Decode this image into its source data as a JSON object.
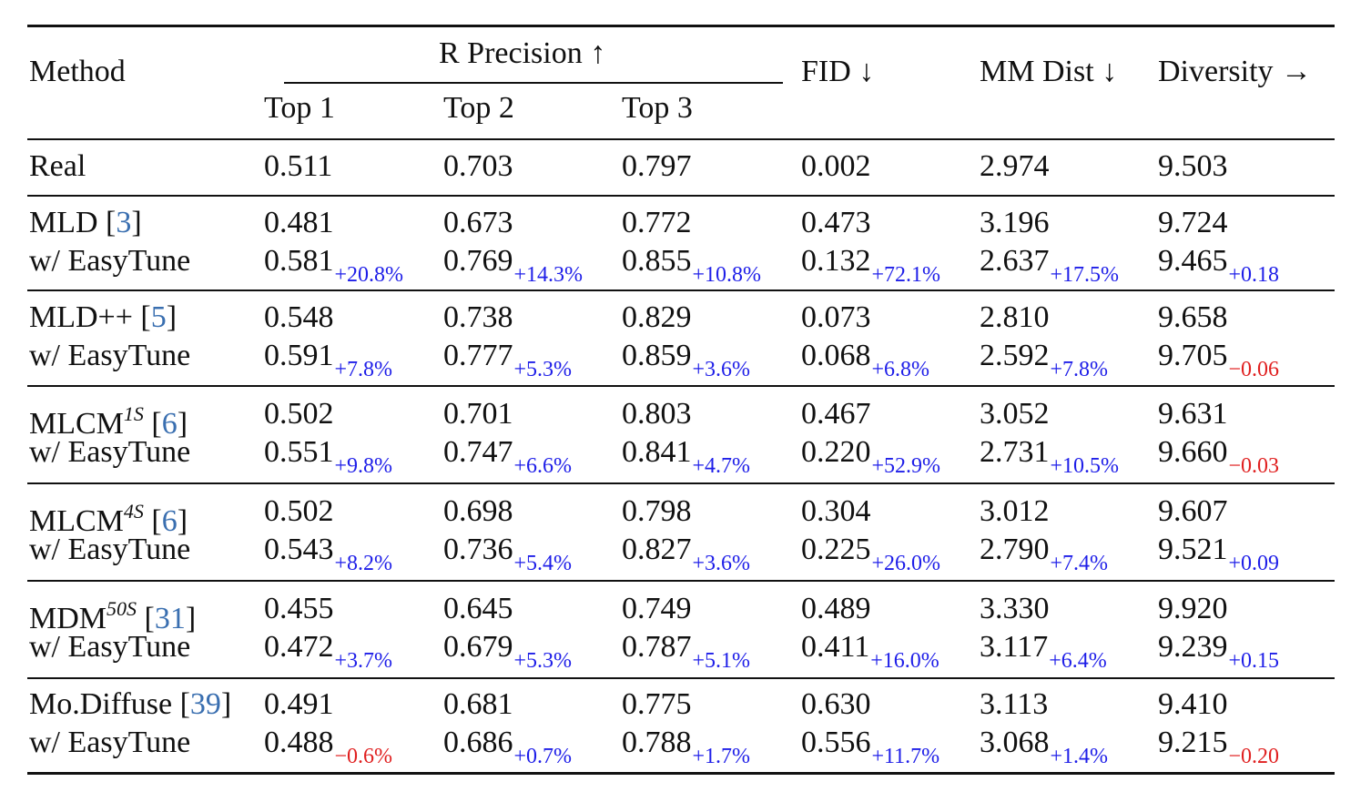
{
  "header": {
    "method": "Method",
    "r_precision": "R Precision ↑",
    "top1": "Top 1",
    "top2": "Top 2",
    "top3": "Top 3",
    "fid": "FID ↓",
    "mm_dist": "MM Dist ↓",
    "diversity": "Diversity →"
  },
  "rows": [
    {
      "method": "Real",
      "ref": "",
      "sup": "",
      "values": [
        "0.511",
        "0.703",
        "0.797",
        "0.002",
        "2.974",
        "9.503"
      ],
      "deltas": [
        "",
        "",
        "",
        "",
        "",
        ""
      ],
      "signs": [
        "",
        "",
        "",
        "",
        "",
        ""
      ]
    },
    {
      "method": "MLD [",
      "ref": "3",
      "sup": "",
      "values": [
        "0.481",
        "0.673",
        "0.772",
        "0.473",
        "3.196",
        "9.724"
      ],
      "deltas": [
        "",
        "",
        "",
        "",
        "",
        ""
      ],
      "signs": [
        "",
        "",
        "",
        "",
        "",
        ""
      ]
    },
    {
      "method": "w/ EasyTune",
      "ref": "",
      "sup": "",
      "values": [
        "0.581",
        "0.769",
        "0.855",
        "0.132",
        "2.637",
        "9.465"
      ],
      "deltas": [
        "+20.8%",
        "+14.3%",
        "+10.8%",
        "+72.1%",
        "+17.5%",
        "+0.18"
      ],
      "signs": [
        "pos",
        "pos",
        "pos",
        "pos",
        "pos",
        "pos"
      ]
    },
    {
      "method": "MLD++ [",
      "ref": "5",
      "sup": "",
      "values": [
        "0.548",
        "0.738",
        "0.829",
        "0.073",
        "2.810",
        "9.658"
      ],
      "deltas": [
        "",
        "",
        "",
        "",
        "",
        ""
      ],
      "signs": [
        "",
        "",
        "",
        "",
        "",
        ""
      ]
    },
    {
      "method": "w/ EasyTune",
      "ref": "",
      "sup": "",
      "values": [
        "0.591",
        "0.777",
        "0.859",
        "0.068",
        "2.592",
        "9.705"
      ],
      "deltas": [
        "+7.8%",
        "+5.3%",
        "+3.6%",
        "+6.8%",
        "+7.8%",
        "−0.06"
      ],
      "signs": [
        "pos",
        "pos",
        "pos",
        "pos",
        "pos",
        "neg"
      ]
    },
    {
      "method": "MLCM",
      "ref": "6",
      "sup": "1S",
      "values": [
        "0.502",
        "0.701",
        "0.803",
        "0.467",
        "3.052",
        "9.631"
      ],
      "deltas": [
        "",
        "",
        "",
        "",
        "",
        ""
      ],
      "signs": [
        "",
        "",
        "",
        "",
        "",
        ""
      ]
    },
    {
      "method": "w/ EasyTune",
      "ref": "",
      "sup": "",
      "values": [
        "0.551",
        "0.747",
        "0.841",
        "0.220",
        "2.731",
        "9.660"
      ],
      "deltas": [
        "+9.8%",
        "+6.6%",
        "+4.7%",
        "+52.9%",
        "+10.5%",
        "−0.03"
      ],
      "signs": [
        "pos",
        "pos",
        "pos",
        "pos",
        "pos",
        "neg"
      ]
    },
    {
      "method": "MLCM",
      "ref": "6",
      "sup": "4S",
      "values": [
        "0.502",
        "0.698",
        "0.798",
        "0.304",
        "3.012",
        "9.607"
      ],
      "deltas": [
        "",
        "",
        "",
        "",
        "",
        ""
      ],
      "signs": [
        "",
        "",
        "",
        "",
        "",
        ""
      ]
    },
    {
      "method": "w/ EasyTune",
      "ref": "",
      "sup": "",
      "values": [
        "0.543",
        "0.736",
        "0.827",
        "0.225",
        "2.790",
        "9.521"
      ],
      "deltas": [
        "+8.2%",
        "+5.4%",
        "+3.6%",
        "+26.0%",
        "+7.4%",
        "+0.09"
      ],
      "signs": [
        "pos",
        "pos",
        "pos",
        "pos",
        "pos",
        "pos"
      ]
    },
    {
      "method": "MDM",
      "ref": "31",
      "sup": "50S",
      "values": [
        "0.455",
        "0.645",
        "0.749",
        "0.489",
        "3.330",
        "9.920"
      ],
      "deltas": [
        "",
        "",
        "",
        "",
        "",
        ""
      ],
      "signs": [
        "",
        "",
        "",
        "",
        "",
        ""
      ]
    },
    {
      "method": "w/ EasyTune",
      "ref": "",
      "sup": "",
      "values": [
        "0.472",
        "0.679",
        "0.787",
        "0.411",
        "3.117",
        "9.239"
      ],
      "deltas": [
        "+3.7%",
        "+5.3%",
        "+5.1%",
        "+16.0%",
        "+6.4%",
        "+0.15"
      ],
      "signs": [
        "pos",
        "pos",
        "pos",
        "pos",
        "pos",
        "pos"
      ]
    },
    {
      "method": "Mo.Diffuse [",
      "ref": "39",
      "sup": "",
      "values": [
        "0.491",
        "0.681",
        "0.775",
        "0.630",
        "3.113",
        "9.410"
      ],
      "deltas": [
        "",
        "",
        "",
        "",
        "",
        ""
      ],
      "signs": [
        "",
        "",
        "",
        "",
        "",
        ""
      ]
    },
    {
      "method": "w/ EasyTune",
      "ref": "",
      "sup": "",
      "values": [
        "0.488",
        "0.686",
        "0.788",
        "0.556",
        "3.068",
        "9.215"
      ],
      "deltas": [
        "−0.6%",
        "+0.7%",
        "+1.7%",
        "+11.7%",
        "+1.4%",
        "−0.20"
      ],
      "signs": [
        "neg",
        "pos",
        "pos",
        "pos",
        "pos",
        "neg"
      ]
    }
  ]
}
